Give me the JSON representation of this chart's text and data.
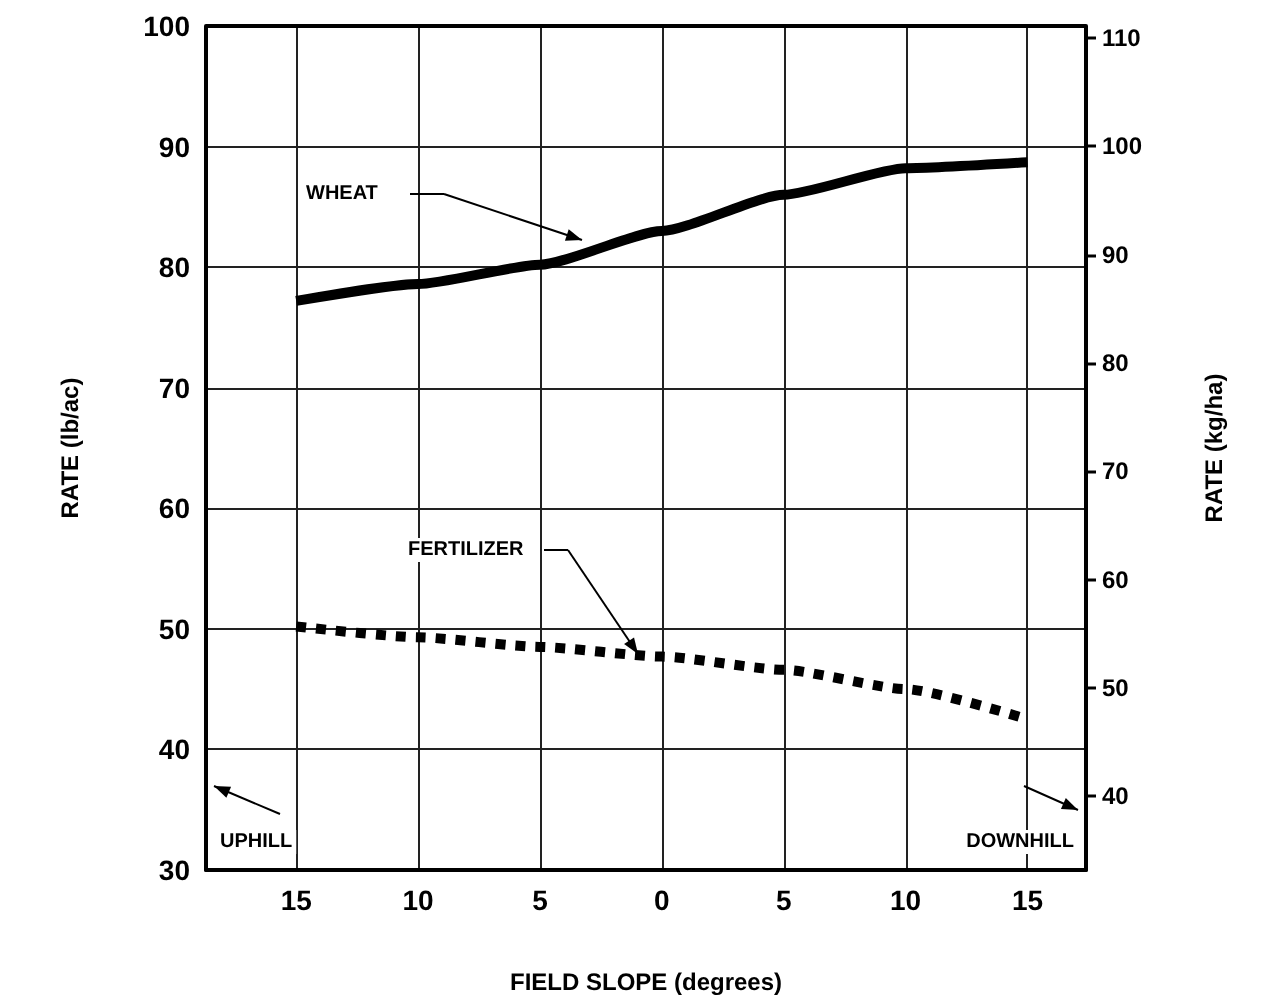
{
  "chart_data": {
    "type": "line",
    "xlabel": "FIELD SLOPE (degrees)",
    "ylabel": "RATE (lb/ac)",
    "y2label": "RATE (kg/ha)",
    "x": [
      -15,
      -10,
      -5,
      0,
      5,
      10,
      15
    ],
    "series": [
      {
        "color": "#000000",
        "line_style": "solid",
        "values": [
          77.2,
          78.6,
          80.2,
          83.0,
          86.0,
          88.2,
          88.7
        ]
      },
      {
        "color": "#000000",
        "line_style": "dotted",
        "values": [
          50.2,
          49.3,
          48.5,
          47.7,
          46.6,
          45.0,
          42.5
        ]
      }
    ],
    "xlim": [
      -18.7,
      17.4
    ],
    "xticks": [
      {
        "value": -15,
        "label": "15"
      },
      {
        "value": -10,
        "label": "10"
      },
      {
        "value": -5,
        "label": "5"
      },
      0,
      5,
      10,
      15
    ],
    "ylim": [
      30,
      100
    ],
    "yticks": [
      30,
      40,
      50,
      60,
      70,
      80,
      90,
      100
    ],
    "y2lim": [
      33.2,
      111.1
    ],
    "y2ticks": [
      40,
      50,
      60,
      70,
      80,
      90,
      100,
      110
    ],
    "grid": true,
    "marker": "none",
    "annotations": [
      "WHEAT",
      "FERTILIZER",
      "UPHILL",
      "DOWNHILL"
    ]
  }
}
